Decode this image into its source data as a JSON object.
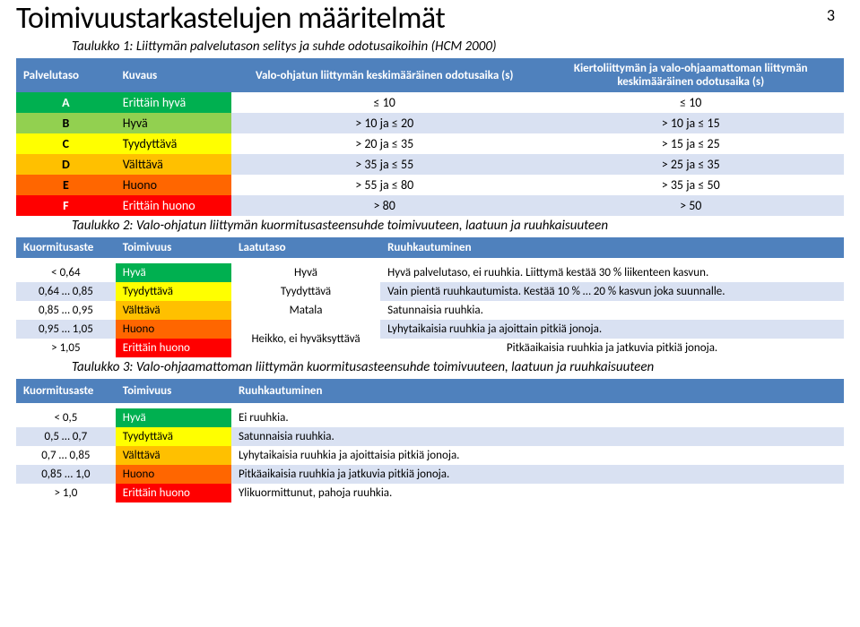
{
  "page_number": "3",
  "title": "Toimivuustarkastelujen määritelmät",
  "caption1": "Taulukko 1: Liittymän palvelutason selitys ja suhde odotusaikoihin (HCM 2000)",
  "t1": {
    "headers": [
      "Palvelutaso",
      "Kuvaus",
      "Valo-ohjatun liittymän keskimääräinen odotusaika (s)",
      "Kiertoliittymän ja valo-ohjaamattoman liittymän keskimääräinen odotusaika (s)"
    ],
    "rows": [
      [
        "A",
        "Erittäin hyvä",
        "≤ 10",
        "≤ 10"
      ],
      [
        "B",
        "Hyvä",
        "> 10 ja ≤ 20",
        "> 10 ja ≤ 15"
      ],
      [
        "C",
        "Tyydyttävä",
        "> 20 ja ≤ 35",
        "> 15 ja ≤ 25"
      ],
      [
        "D",
        "Välttävä",
        "> 35 ja ≤ 55",
        "> 25 ja ≤ 35"
      ],
      [
        "E",
        "Huono",
        "> 55 ja ≤ 80",
        "> 35 ja ≤ 50"
      ],
      [
        "F",
        "Erittäin huono",
        "> 80",
        "> 50"
      ]
    ]
  },
  "caption2": "Taulukko 2: Valo-ohjatun liittymän kuormitusasteensuhde toimivuuteen, laatuun ja ruuhkaisuuteen",
  "t2": {
    "headers": [
      "Kuormitusaste",
      "Toimivuus",
      "Laatutaso",
      "Ruuhkautuminen"
    ],
    "rows": [
      [
        "< 0,64",
        "Hyvä",
        "Hyvä",
        "Hyvä palvelutaso, ei ruuhkia. Liittymä kestää 30 % liikenteen kasvun."
      ],
      [
        "0,64 … 0,85",
        "Tyydyttävä",
        "Tyydyttävä",
        "Vain pientä ruuhkautumista. Kestää 10 % … 20 % kasvun joka suunnalle."
      ],
      [
        "0,85 … 0,95",
        "Välttävä",
        "Matala",
        "Satunnaisia ruuhkia."
      ],
      [
        "0,95 … 1,05",
        "Huono",
        "",
        "Lyhytaikaisia ruuhkia ja ajoittain pitkiä jonoja."
      ],
      [
        "> 1,05",
        "Erittäin huono",
        "",
        "Pitkäaikaisia ruuhkia ja jatkuvia pitkiä jonoja."
      ]
    ],
    "merged_quality": "Heikko, ei hyväksyttävä"
  },
  "caption3": "Taulukko 3: Valo-ohjaamattoman liittymän kuormitusasteensuhde toimivuuteen, laatuun ja ruuhkaisuuteen",
  "t3": {
    "headers": [
      "Kuormitusaste",
      "Toimivuus",
      "Ruuhkautuminen"
    ],
    "rows": [
      [
        "< 0,5",
        "Hyvä",
        "Ei ruuhkia."
      ],
      [
        "0,5 … 0,7",
        "Tyydyttävä",
        "Satunnaisia ruuhkia."
      ],
      [
        "0,7 … 0,85",
        "Välttävä",
        "Lyhytaikaisia ruuhkia ja ajoittaisia pitkiä jonoja."
      ],
      [
        "0,85 … 1,0",
        "Huono",
        "Pitkäaikaisia ruuhkia ja jatkuvia pitkiä jonoja."
      ],
      [
        "> 1,0",
        "Erittäin huono",
        "Ylikuormittunut, pahoja ruuhkia."
      ]
    ]
  }
}
